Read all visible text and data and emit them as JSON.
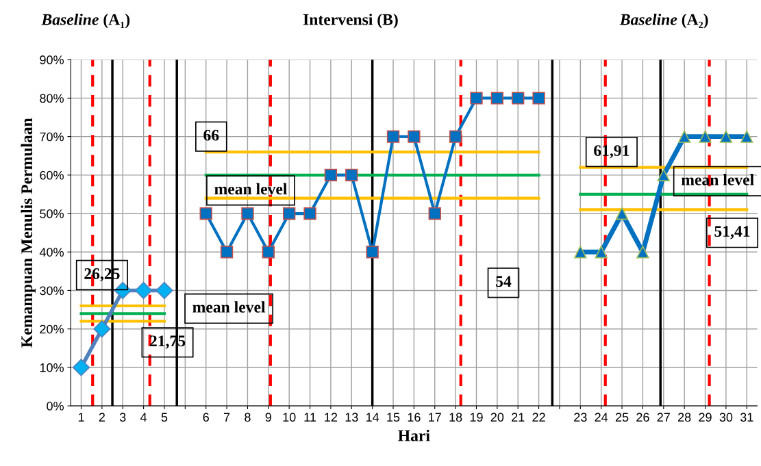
{
  "chart_data": {
    "type": "line",
    "xlabel": "Hari",
    "ylabel": "Kemampuan Menulis Permulaan",
    "categories": [
      "1",
      "2",
      "3",
      "4",
      "5",
      null,
      "6",
      "7",
      "8",
      "9",
      "10",
      "11",
      "12",
      "13",
      "14",
      "15",
      "16",
      "17",
      "18",
      "19",
      "20",
      "21",
      "22",
      null,
      "23",
      "24",
      "25",
      "26",
      "27",
      "28",
      "29",
      "30",
      "31"
    ],
    "ylim": [
      0,
      90
    ],
    "yticks": [
      {
        "value": 0,
        "label": "0%"
      },
      {
        "value": 10,
        "label": "10%"
      },
      {
        "value": 20,
        "label": "20%"
      },
      {
        "value": 30,
        "label": "30%"
      },
      {
        "value": 40,
        "label": "40%"
      },
      {
        "value": 50,
        "label": "50%"
      },
      {
        "value": 60,
        "label": "60%"
      },
      {
        "value": 70,
        "label": "70%"
      },
      {
        "value": 80,
        "label": "80%"
      },
      {
        "value": 90,
        "label": "90%"
      }
    ],
    "grid": true,
    "line_style": "solid",
    "series": [
      {
        "color": "#4f81bd",
        "marker": "diamond",
        "values": [
          10,
          20,
          30,
          30,
          30,
          null,
          null,
          null,
          null,
          null,
          null,
          null,
          null,
          null,
          null,
          null,
          null,
          null,
          null,
          null,
          null,
          null,
          null,
          null,
          null,
          null,
          null,
          null,
          null,
          null,
          null,
          null,
          null
        ]
      },
      {
        "color": "#0070c0",
        "marker": "square",
        "values": [
          null,
          null,
          null,
          null,
          null,
          null,
          50,
          40,
          50,
          40,
          50,
          50,
          60,
          60,
          40,
          70,
          70,
          50,
          70,
          80,
          80,
          80,
          80,
          null,
          null,
          null,
          null,
          null,
          null,
          null,
          null,
          null,
          null
        ]
      },
      {
        "color": "#0070c0",
        "marker": "triangle",
        "values": [
          null,
          null,
          null,
          null,
          null,
          null,
          null,
          null,
          null,
          null,
          null,
          null,
          null,
          null,
          null,
          null,
          null,
          null,
          null,
          null,
          null,
          null,
          null,
          null,
          40,
          40,
          50,
          40,
          60,
          70,
          70,
          70,
          70
        ]
      },
      {
        "color": "#ffc000",
        "marker": "none",
        "values": [
          26,
          26,
          26,
          26,
          26,
          null,
          null,
          null,
          null,
          null,
          null,
          null,
          null,
          null,
          null,
          null,
          null,
          null,
          null,
          null,
          null,
          null,
          null,
          null,
          null,
          null,
          null,
          null,
          null,
          null,
          null,
          null,
          null
        ]
      },
      {
        "color": "#00b050",
        "marker": "none",
        "values": [
          24,
          24,
          24,
          24,
          24,
          null,
          null,
          null,
          null,
          null,
          null,
          null,
          null,
          null,
          null,
          null,
          null,
          null,
          null,
          null,
          null,
          null,
          null,
          null,
          null,
          null,
          null,
          null,
          null,
          null,
          null,
          null,
          null
        ]
      },
      {
        "color": "#ffc000",
        "marker": "none",
        "values": [
          22,
          22,
          22,
          22,
          22,
          null,
          null,
          null,
          null,
          null,
          null,
          null,
          null,
          null,
          null,
          null,
          null,
          null,
          null,
          null,
          null,
          null,
          null,
          null,
          null,
          null,
          null,
          null,
          null,
          null,
          null,
          null,
          null
        ]
      },
      {
        "color": "#ffc000",
        "marker": "none",
        "values": [
          null,
          null,
          null,
          null,
          null,
          null,
          66,
          66,
          66,
          66,
          66,
          66,
          66,
          66,
          66,
          66,
          66,
          66,
          66,
          66,
          66,
          66,
          66,
          null,
          null,
          null,
          null,
          null,
          null,
          null,
          null,
          null,
          null
        ]
      },
      {
        "color": "#00b050",
        "marker": "none",
        "values": [
          null,
          null,
          null,
          null,
          null,
          null,
          60,
          60,
          60,
          60,
          60,
          60,
          60,
          60,
          60,
          60,
          60,
          60,
          60,
          60,
          60,
          60,
          60,
          null,
          null,
          null,
          null,
          null,
          null,
          null,
          null,
          null,
          null
        ]
      },
      {
        "color": "#ffc000",
        "marker": "none",
        "values": [
          null,
          null,
          null,
          null,
          null,
          null,
          54,
          54,
          54,
          54,
          54,
          54,
          54,
          54,
          54,
          54,
          54,
          54,
          54,
          54,
          54,
          54,
          54,
          null,
          null,
          null,
          null,
          null,
          null,
          null,
          null,
          null,
          null
        ]
      },
      {
        "color": "#ffc000",
        "marker": "none",
        "values": [
          null,
          null,
          null,
          null,
          null,
          null,
          null,
          null,
          null,
          null,
          null,
          null,
          null,
          null,
          null,
          null,
          null,
          null,
          null,
          null,
          null,
          null,
          null,
          null,
          62,
          62,
          62,
          62,
          62,
          62,
          62,
          62,
          62
        ]
      },
      {
        "color": "#00b050",
        "marker": "none",
        "values": [
          null,
          null,
          null,
          null,
          null,
          null,
          null,
          null,
          null,
          null,
          null,
          null,
          null,
          null,
          null,
          null,
          null,
          null,
          null,
          null,
          null,
          null,
          null,
          null,
          55,
          55,
          55,
          55,
          55,
          55,
          55,
          55,
          55
        ]
      },
      {
        "color": "#ffc000",
        "marker": "none",
        "values": [
          null,
          null,
          null,
          null,
          null,
          null,
          null,
          null,
          null,
          null,
          null,
          null,
          null,
          null,
          null,
          null,
          null,
          null,
          null,
          null,
          null,
          null,
          null,
          null,
          51,
          51,
          51,
          51,
          51,
          51,
          51,
          51,
          51
        ]
      }
    ],
    "annotations": [
      "Baseline (A₁)",
      "Intervensi (B)",
      "Baseline (A₂)",
      "26,25",
      "mean level",
      "21,75",
      "66",
      "mean level",
      "54",
      "61,91",
      "mean level",
      "51,41"
    ]
  }
}
